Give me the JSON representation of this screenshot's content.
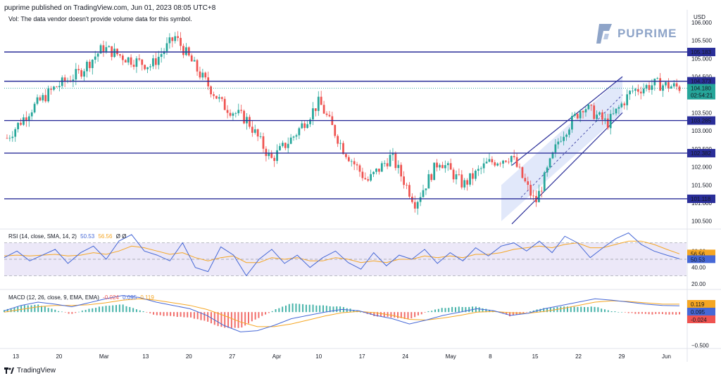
{
  "header": {
    "caption": "puprime published on TradingView.com, Jun 01, 2023 08:05 UTC+8",
    "vol_note": "Vol: The data vendor doesn't provide volume data for this symbol."
  },
  "brand": {
    "logo_text": "PUPRIME",
    "footer_text": "TradingView"
  },
  "colors": {
    "up": "#26a69a",
    "down": "#ef5350",
    "level_line": "#2a2e99",
    "rsi": "#4668d6",
    "rsi_ma": "#f5a623",
    "macd": "#4668d6",
    "signal": "#f5a623",
    "channel_fill": "#c9d6f5",
    "rsi_band": "#ece8f8"
  },
  "chart_data": [
    {
      "type": "candlestick",
      "pane": "price",
      "currency_label": "USD",
      "y_ticks": [
        "106.000",
        "105.500",
        "105.000",
        "104.500",
        "104.000",
        "103.500",
        "103.000",
        "102.500",
        "102.000",
        "101.500",
        "101.000",
        "100.500"
      ],
      "ylim": [
        100.3,
        106.35
      ],
      "x_ticks": [
        "13",
        "20",
        "Mar",
        "13",
        "20",
        "27",
        "Apr",
        "10",
        "17",
        "24",
        "May",
        "8",
        "15",
        "22",
        "29",
        "Jun"
      ],
      "horizontal_levels": [
        "105.183",
        "104.373",
        "103.285",
        "102.382",
        "101.118"
      ],
      "current_price": "104.180",
      "countdown": "02:54:21",
      "ohlc_anchor_closes": [
        102.8,
        103.6,
        104.2,
        104.6,
        105.3,
        105.0,
        104.8,
        105.6,
        104.6,
        103.7,
        103.3,
        102.2,
        102.9,
        103.8,
        102.5,
        101.6,
        102.3,
        101.0,
        102.2,
        101.5,
        102.1,
        102.3,
        101.0,
        102.8,
        103.7,
        103.2,
        104.1,
        104.3,
        104.2
      ],
      "channel": {
        "lower_start": 100.5,
        "lower_end": 103.5,
        "upper_start": 101.5,
        "upper_end": 104.5
      }
    },
    {
      "type": "line",
      "pane": "rsi",
      "label": "RSI (14, close, SMA, 14, 2)",
      "rsi_value": "50.53",
      "rsi_ma_value": "56.56",
      "extra": "Ø Ø",
      "y_ticks": [
        "60.00",
        "40.00",
        "20.00"
      ],
      "band": [
        30,
        70
      ],
      "ylim": [
        15,
        85
      ],
      "series": [
        {
          "name": "RSI",
          "values": [
            52,
            60,
            48,
            55,
            62,
            45,
            58,
            66,
            50,
            72,
            80,
            60,
            55,
            48,
            70,
            40,
            35,
            65,
            55,
            30,
            50,
            62,
            45,
            55,
            40,
            52,
            60,
            46,
            38,
            58,
            42,
            55,
            50,
            62,
            45,
            58,
            48,
            64,
            54,
            66,
            70,
            60,
            72,
            58,
            78,
            70,
            52,
            64,
            75,
            82,
            68,
            60,
            55,
            50.53
          ]
        },
        {
          "name": "RSI MA",
          "values": [
            54,
            55,
            54,
            55,
            56,
            54,
            55,
            58,
            56,
            60,
            66,
            64,
            60,
            56,
            58,
            52,
            48,
            52,
            54,
            46,
            46,
            52,
            50,
            52,
            48,
            48,
            52,
            50,
            46,
            48,
            46,
            50,
            50,
            54,
            52,
            54,
            52,
            56,
            56,
            58,
            62,
            64,
            66,
            64,
            68,
            70,
            64,
            64,
            68,
            72,
            72,
            68,
            62,
            56.56
          ]
        }
      ]
    },
    {
      "type": "bar",
      "pane": "macd",
      "label": "MACD (12, 26, close, 9, EMA, EMA)",
      "hist_value": "-0.024",
      "macd_value": "0.095",
      "signal_value": "0.119",
      "y_ticks": [
        "0.000",
        "−0.500"
      ],
      "ylim": [
        -0.55,
        0.32
      ],
      "series": [
        {
          "name": "MACD",
          "values": [
            0.02,
            0.1,
            0.15,
            0.12,
            0.08,
            0.14,
            0.2,
            0.25,
            0.22,
            0.15,
            0.1,
            0.05,
            -0.05,
            -0.2,
            -0.3,
            -0.28,
            -0.2,
            -0.1,
            -0.05,
            0.0,
            0.04,
            0.02,
            -0.05,
            -0.1,
            -0.18,
            -0.12,
            -0.05,
            0.0,
            0.05,
            0.02,
            -0.05,
            -0.02,
            0.05,
            0.1,
            0.15,
            0.2,
            0.18,
            0.15,
            0.12,
            0.1,
            0.095
          ]
        },
        {
          "name": "Signal",
          "values": [
            0.0,
            0.04,
            0.08,
            0.1,
            0.1,
            0.11,
            0.14,
            0.18,
            0.2,
            0.18,
            0.14,
            0.1,
            0.04,
            -0.05,
            -0.15,
            -0.22,
            -0.22,
            -0.18,
            -0.12,
            -0.06,
            -0.01,
            0.01,
            -0.01,
            -0.05,
            -0.11,
            -0.12,
            -0.09,
            -0.05,
            0.0,
            0.01,
            -0.01,
            -0.02,
            0.01,
            0.05,
            0.1,
            0.15,
            0.17,
            0.16,
            0.14,
            0.12,
            0.119
          ]
        }
      ]
    }
  ]
}
